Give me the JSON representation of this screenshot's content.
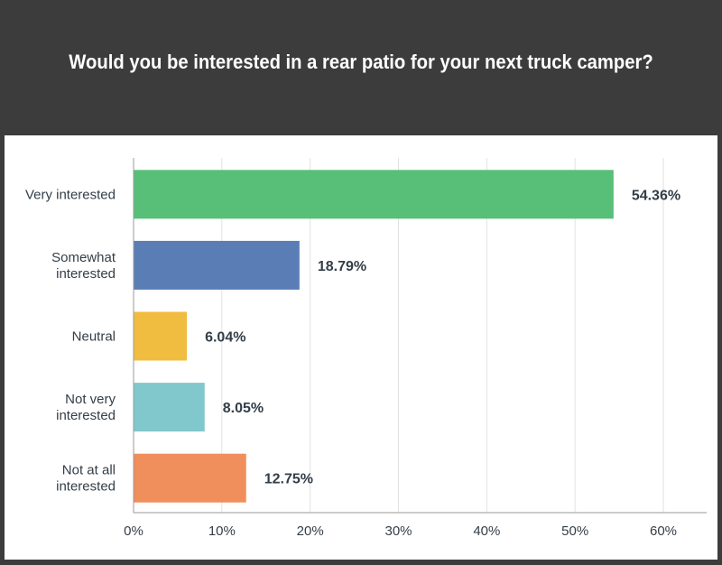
{
  "header": {
    "title": "Would you be interested in a rear patio for your next truck camper?"
  },
  "chart_data": {
    "type": "bar",
    "orientation": "horizontal",
    "title": "Would you be interested in a rear patio for your next truck camper?",
    "categories": [
      [
        "Very interested"
      ],
      [
        "Somewhat",
        "interested"
      ],
      [
        "Neutral"
      ],
      [
        "Not very",
        "interested"
      ],
      [
        "Not at all",
        "interested"
      ]
    ],
    "values": [
      54.36,
      18.79,
      6.04,
      8.05,
      12.75
    ],
    "value_labels": [
      "54.36%",
      "18.79%",
      "6.04%",
      "8.05%",
      "12.75%"
    ],
    "colors": [
      "#57bf78",
      "#5a7db5",
      "#f0bd41",
      "#80c8cc",
      "#f08e5c"
    ],
    "xlim": [
      0,
      60
    ],
    "xticks": [
      0,
      10,
      20,
      30,
      40,
      50,
      60
    ],
    "xtick_labels": [
      "0%",
      "10%",
      "20%",
      "30%",
      "40%",
      "50%",
      "60%"
    ],
    "grid": true,
    "legend": false
  }
}
